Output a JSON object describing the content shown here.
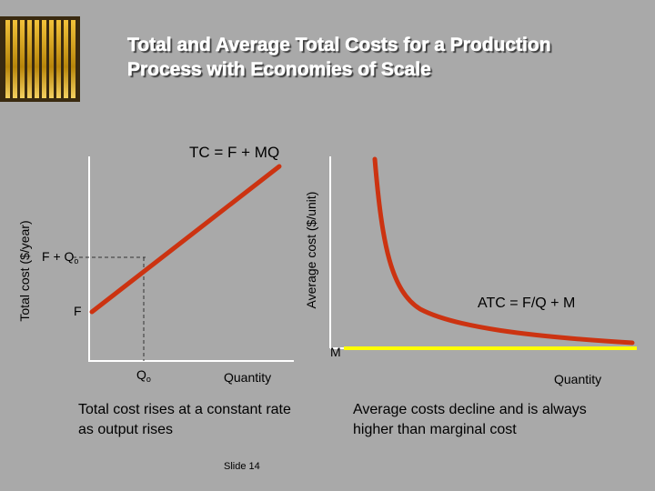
{
  "slide": {
    "title_line1": "Total and Average Total Costs for a Production",
    "title_line2": "Process with Economies of Scale",
    "slide_number": "Slide 14"
  },
  "left_chart": {
    "y_axis_label": "Total cost ($/year)",
    "x_axis_label": "Quantity",
    "curve_label": "TC = F + MQ",
    "label_F": "F",
    "label_F_plus_Q": "F + Q",
    "label_F_plus_Q_sub": "o",
    "label_Q": "Q",
    "label_Q_sub": "o",
    "caption": "Total cost rises at a constant rate as output rises",
    "curve_color": "#cc3311"
  },
  "right_chart": {
    "y_axis_label": "Average cost ($/unit)",
    "x_axis_label": "Quantity",
    "curve_label": "ATC = F/Q + M",
    "label_M": "M",
    "caption": "Average costs decline and is always higher than marginal cost",
    "curve_color": "#cc3311",
    "marginal_line_color": "#ffff00"
  },
  "banner": {
    "decoration_icon": "gold-stripes-icon"
  }
}
